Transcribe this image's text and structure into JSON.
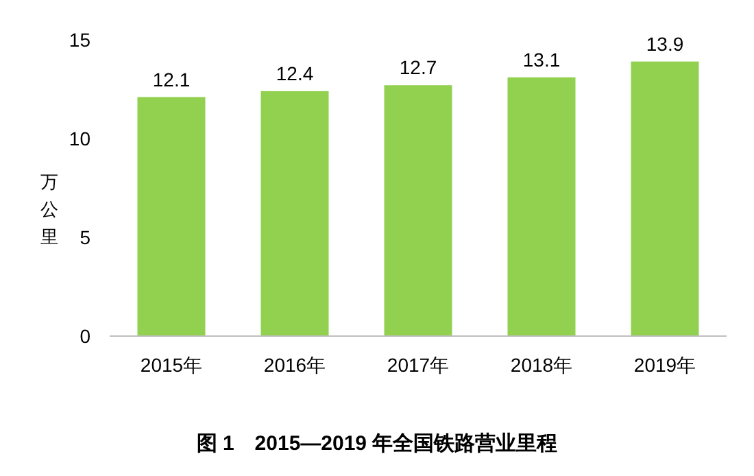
{
  "chart_data": {
    "type": "bar",
    "title": "图 1　2015—2019 年全国铁路营业里程",
    "ylabel": "万公里",
    "categories": [
      "2015年",
      "2016年",
      "2017年",
      "2018年",
      "2019年"
    ],
    "values": [
      12.1,
      12.4,
      12.7,
      13.1,
      13.9
    ],
    "color": "#92d050",
    "ylim": [
      0,
      15
    ],
    "yticks": [
      0,
      5,
      10,
      15
    ],
    "grid": false,
    "data_labels": true
  }
}
